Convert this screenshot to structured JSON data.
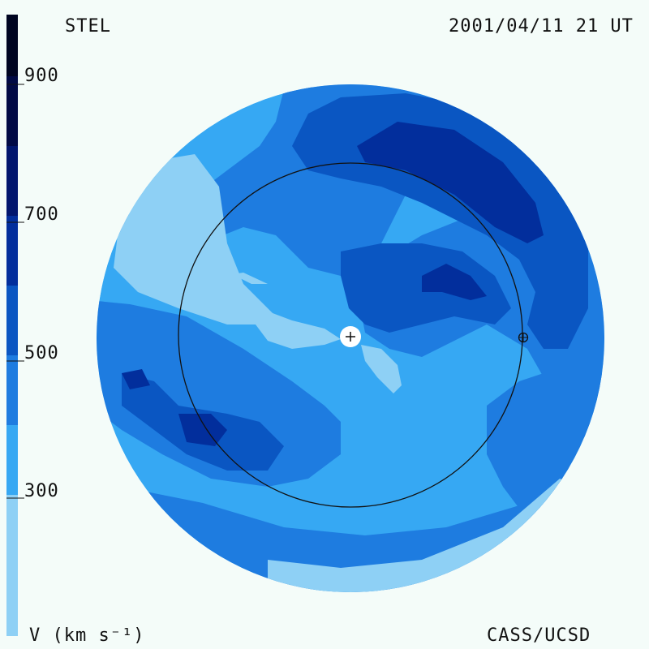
{
  "header": {
    "instrument": "STEL",
    "timestamp": "2001/04/11 21 UT"
  },
  "footer": {
    "credit": "CASS/UCSD"
  },
  "colorbar": {
    "unit_label": "V (km s⁻¹)",
    "ticks": [
      "300",
      "500",
      "700",
      "900"
    ],
    "palette": {
      "v200_300": "#8ed0f5",
      "v300_400": "#36a8f3",
      "v400_500": "#1e7ce0",
      "v500_600": "#0a56c2",
      "v600_700": "#022e9c",
      "v700_800": "#01166e",
      "v800_900": "#010a45",
      "v900_plus": "#000521"
    }
  },
  "map": {
    "background_fill": "#f4fcf9",
    "earth_orbit_circle": "earth-orbit",
    "sun_marker": "sun-plus-icon",
    "earth_marker": "earth-circle-plus-icon"
  }
}
